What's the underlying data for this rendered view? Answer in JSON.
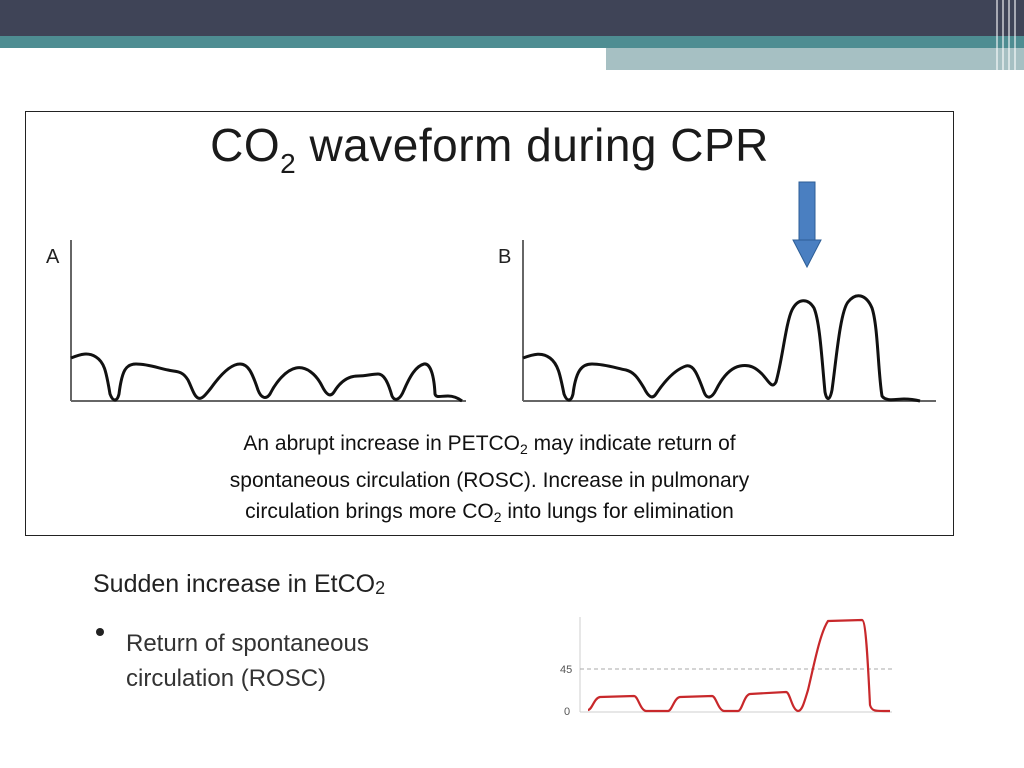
{
  "slide": {
    "figure": {
      "title_main": "CO",
      "title_sub": "2",
      "title_rest": " waveform during CPR",
      "panel_a": "A",
      "panel_b": "B",
      "caption": {
        "l1_a": "An abrupt increase in PETCO",
        "l1_sub": "2",
        "l1_b": " may indicate return of",
        "l2": "spontaneous  circulation (ROSC). Increase in pulmonary",
        "l3_a": "circulation brings more CO",
        "l3_sub": "2",
        "l3_b": "  into lungs for elimination"
      },
      "arrow_color": "#4a7fc1"
    },
    "heading": {
      "main": "Sudden increase in EtCO",
      "sub": "2"
    },
    "bullet": "Return of spontaneous circulation (ROSC)",
    "mini_chart": {
      "y_label_high": "45",
      "y_label_low": "0",
      "line_color": "#c8282b"
    }
  }
}
